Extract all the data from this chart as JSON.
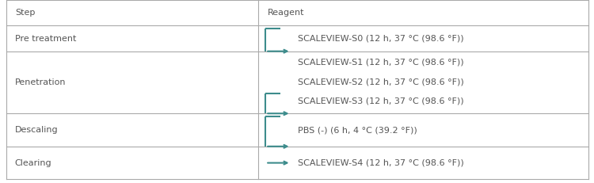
{
  "col1_header": "Step",
  "col2_header": "Reagent",
  "col_split": 0.435,
  "teal": "#3d8c8c",
  "text_color": "#555555",
  "bg_color": "#ffffff",
  "border_color": "#aaaaaa",
  "font_size": 8.0,
  "lw_border": 0.8,
  "lw_bracket": 1.5,
  "rows": [
    {
      "step": "Pre treatment",
      "reagents": [
        "SCALEVIEW-S0 (12 h, 37 °C (98.6 °F))"
      ]
    },
    {
      "step": "Penetration",
      "reagents": [
        "SCALEVIEW-S1 (12 h, 37 °C (98.6 °F))",
        "SCALEVIEW-S2 (12 h, 37 °C (98.6 °F))",
        "SCALEVIEW-S3 (12 h, 37 °C (98.6 °F))"
      ]
    },
    {
      "step": "Descaling",
      "reagents": [
        "PBS (-) (6 h, 4 °C (39.2 °F))"
      ]
    },
    {
      "step": "Clearing",
      "reagents": [
        "SCALEVIEW-S4 (12 h, 37 °C (98.6 °F))"
      ]
    }
  ],
  "row_tops": [
    1.0,
    0.86,
    0.72,
    0.38,
    0.2,
    0.02
  ],
  "arrow_scale": 7
}
